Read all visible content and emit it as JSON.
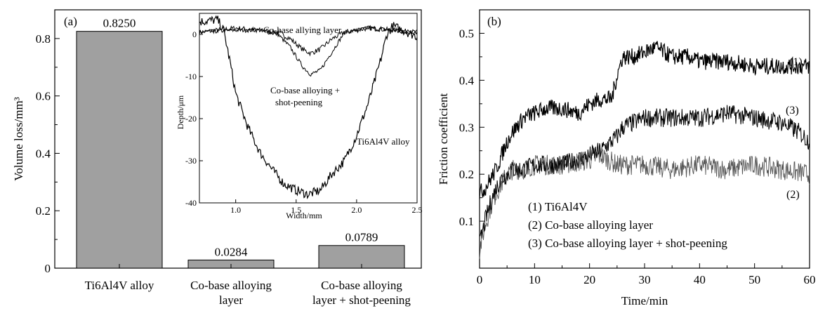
{
  "colors": {
    "bar": "#a0a0a0",
    "ink": "#000000",
    "curve_light": "#555555"
  },
  "chart_data": [
    {
      "panel": "(a)",
      "type": "bar",
      "categories": [
        [
          "Ti6Al4V alloy"
        ],
        [
          "Co-base alloying",
          "layer"
        ],
        [
          "Co-base alloying",
          "layer + shot-peening"
        ]
      ],
      "values": [
        0.825,
        0.0284,
        0.0789
      ],
      "value_labels": [
        "0.8250",
        "0.0284",
        "0.0789"
      ],
      "ylabel": "Volume loss/mm³",
      "ylim": [
        0,
        0.9
      ],
      "yticks": [
        "0",
        "0.2",
        "0.4",
        "0.6",
        "0.8"
      ],
      "inset": {
        "type": "line",
        "xlabel": "Width/mm",
        "ylabel": "Depth/μm",
        "xlim": [
          0.7,
          2.5
        ],
        "ylim": [
          -40,
          5
        ],
        "xticks": [
          "1.0",
          "1.5",
          "2.0",
          "2.5"
        ],
        "yticks": [
          "0",
          "-10",
          "-20",
          "-30",
          "-40"
        ],
        "series": [
          {
            "name": "Co-base allying layer",
            "x": [
              0.7,
              1.0,
              1.2,
              1.35,
              1.45,
              1.55,
              1.62,
              1.7,
              1.8,
              1.9,
              2.1,
              2.5
            ],
            "y": [
              0.5,
              1.5,
              1.0,
              0.5,
              -1.0,
              -3.5,
              -4.5,
              -3.5,
              -1.0,
              0.5,
              1.5,
              0.5
            ]
          },
          {
            "name": "Co-base alloying + shot-peening",
            "x": [
              0.7,
              1.0,
              1.2,
              1.35,
              1.45,
              1.55,
              1.62,
              1.7,
              1.8,
              1.9,
              2.1,
              2.5
            ],
            "y": [
              0.5,
              1.0,
              1.0,
              0.0,
              -3.0,
              -7.5,
              -9.5,
              -8.5,
              -4.0,
              0.5,
              1.5,
              0.5
            ]
          },
          {
            "name": "Ti6Al4V alloy",
            "x": [
              0.7,
              0.85,
              0.9,
              0.95,
              1.0,
              1.1,
              1.2,
              1.3,
              1.4,
              1.5,
              1.6,
              1.7,
              1.8,
              1.9,
              2.0,
              2.1,
              2.2,
              2.25,
              2.3,
              2.5
            ],
            "y": [
              3.0,
              3.5,
              1.0,
              -6.0,
              -14.0,
              -22.0,
              -28.0,
              -32.0,
              -35.5,
              -37.0,
              -38.0,
              -37.0,
              -33.0,
              -30.0,
              -24.0,
              -16.0,
              -6.0,
              0.0,
              2.0,
              -0.5
            ]
          }
        ]
      }
    },
    {
      "panel": "(b)",
      "type": "line",
      "xlabel": "Time/min",
      "ylabel": "Friction coefficient",
      "xlim": [
        0,
        60
      ],
      "ylim": [
        0.0,
        0.55
      ],
      "xticks": [
        "0",
        "10",
        "20",
        "30",
        "40",
        "50",
        "60"
      ],
      "yticks": [
        "0.1",
        "0.2",
        "0.3",
        "0.4",
        "0.5"
      ],
      "legend": [
        "(1) Ti6Al4V",
        "(2) Co-base alloying layer",
        "(3) Co-base alloying layer + shot-peening"
      ],
      "series": [
        {
          "name": "(1)",
          "x": [
            0,
            1,
            2,
            3,
            4,
            5,
            6,
            8,
            10,
            12,
            15,
            18,
            20,
            22,
            24,
            25,
            26,
            28,
            30,
            32,
            35,
            38,
            40,
            45,
            50,
            55,
            60
          ],
          "y": [
            0.16,
            0.17,
            0.19,
            0.21,
            0.24,
            0.27,
            0.29,
            0.32,
            0.33,
            0.34,
            0.34,
            0.33,
            0.35,
            0.36,
            0.36,
            0.41,
            0.45,
            0.45,
            0.46,
            0.47,
            0.45,
            0.45,
            0.44,
            0.44,
            0.43,
            0.43,
            0.43
          ]
        },
        {
          "name": "(2)",
          "x": [
            0,
            1,
            2,
            3,
            4,
            5,
            6,
            8,
            10,
            15,
            20,
            22,
            25,
            30,
            35,
            40,
            45,
            50,
            55,
            60
          ],
          "y": [
            0.04,
            0.09,
            0.13,
            0.16,
            0.18,
            0.2,
            0.21,
            0.21,
            0.22,
            0.22,
            0.23,
            0.24,
            0.22,
            0.22,
            0.21,
            0.22,
            0.21,
            0.22,
            0.21,
            0.2
          ]
        },
        {
          "name": "(3)",
          "x": [
            0,
            1,
            2,
            3,
            4,
            5,
            6,
            8,
            10,
            15,
            20,
            22,
            24,
            25,
            26,
            28,
            30,
            35,
            40,
            45,
            50,
            55,
            58,
            60
          ],
          "y": [
            0.05,
            0.1,
            0.14,
            0.17,
            0.19,
            0.2,
            0.21,
            0.21,
            0.22,
            0.22,
            0.24,
            0.25,
            0.27,
            0.28,
            0.3,
            0.31,
            0.32,
            0.32,
            0.32,
            0.33,
            0.32,
            0.31,
            0.29,
            0.27
          ]
        }
      ],
      "curve_labels": [
        "(1)",
        "(3)",
        "(2)"
      ]
    }
  ]
}
